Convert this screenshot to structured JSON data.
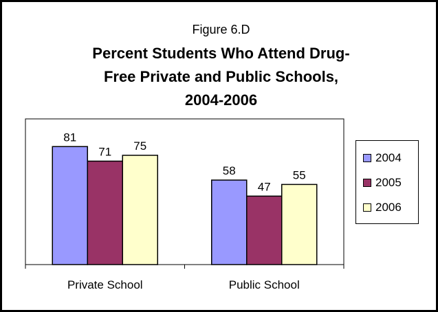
{
  "figure_label": "Figure 6.D",
  "title_lines": [
    "Percent Students Who Attend Drug-",
    "Free Private and Public Schools,",
    "2004-2006"
  ],
  "colors": {
    "2004": "#9999ff",
    "2005": "#993366",
    "2006": "#ffffcc"
  },
  "chart_data": {
    "type": "bar",
    "title": "Percent Students Who Attend Drug-Free Private and Public Schools, 2004-2006",
    "categories": [
      "Private School",
      "Public School"
    ],
    "series": [
      {
        "name": "2004",
        "values": [
          81,
          58
        ]
      },
      {
        "name": "2005",
        "values": [
          71,
          47
        ]
      },
      {
        "name": "2006",
        "values": [
          75,
          55
        ]
      }
    ],
    "ylim": [
      0,
      100
    ],
    "xlabel": "",
    "ylabel": "",
    "grid": false,
    "legend_position": "right"
  }
}
